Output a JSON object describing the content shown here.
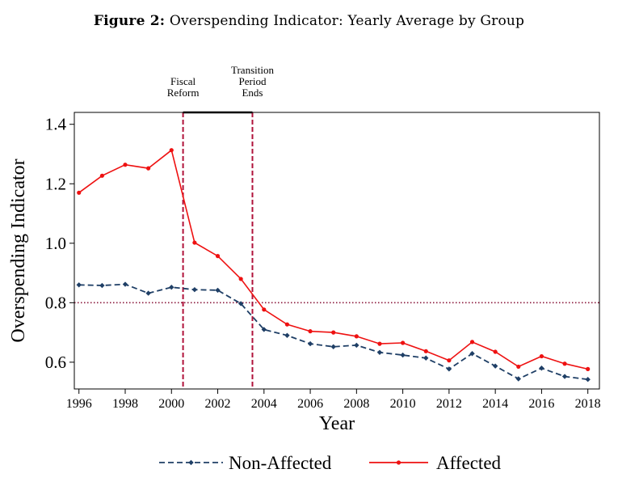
{
  "figure": {
    "title_prefix": "Figure 2:",
    "title_text": "Overspending Indicator: Yearly Average by Group"
  },
  "chart_data": {
    "type": "line",
    "xlabel": "Year",
    "ylabel": "Overspending Indicator",
    "xlim": [
      1995.8,
      2018.5
    ],
    "ylim": [
      0.51,
      1.44
    ],
    "xticks": [
      1996,
      1998,
      2000,
      2002,
      2004,
      2006,
      2008,
      2010,
      2012,
      2014,
      2016,
      2018
    ],
    "yticks": [
      0.6,
      0.8,
      1.0,
      1.2,
      1.4
    ],
    "ytick_labels": [
      "0.6",
      "0.8",
      "1.0",
      "1.2",
      "1.4"
    ],
    "x": [
      1996,
      1997,
      1998,
      1999,
      2000,
      2001,
      2002,
      2003,
      2004,
      2005,
      2006,
      2007,
      2008,
      2009,
      2010,
      2011,
      2012,
      2013,
      2014,
      2015,
      2016,
      2017,
      2018
    ],
    "series": [
      {
        "name": "Non-Affected",
        "color": "#1f3f66",
        "style": "dashed",
        "marker": "diamond",
        "values": [
          0.86,
          0.858,
          0.862,
          0.832,
          0.852,
          0.844,
          0.842,
          0.797,
          0.71,
          0.69,
          0.662,
          0.652,
          0.657,
          0.633,
          0.624,
          0.614,
          0.577,
          0.629,
          0.587,
          0.544,
          0.58,
          0.552,
          0.542
        ]
      },
      {
        "name": "Affected",
        "color": "#ee1111",
        "style": "solid",
        "marker": "circle",
        "values": [
          1.17,
          1.227,
          1.264,
          1.252,
          1.313,
          1.002,
          0.957,
          0.88,
          0.777,
          0.727,
          0.704,
          0.7,
          0.687,
          0.662,
          0.665,
          0.637,
          0.606,
          0.668,
          0.635,
          0.585,
          0.62,
          0.595,
          0.577
        ]
      }
    ],
    "reference_lines": [
      {
        "axis": "x",
        "value": 2000.5,
        "label_lines": [
          "Fiscal",
          "Reform"
        ],
        "color": "#b0123a",
        "style": "dashed"
      },
      {
        "axis": "x",
        "value": 2003.5,
        "label_lines": [
          "Transition",
          "Period",
          "Ends"
        ],
        "color": "#b0123a",
        "style": "dashed"
      },
      {
        "axis": "y",
        "value": 0.8,
        "color": "#8b1a3c",
        "style": "dotted"
      }
    ],
    "bracket": {
      "from": 2000.5,
      "to": 2003.5
    },
    "legend": {
      "position": "bottom",
      "entries": [
        "Non-Affected",
        "Affected"
      ]
    },
    "grid": false
  }
}
